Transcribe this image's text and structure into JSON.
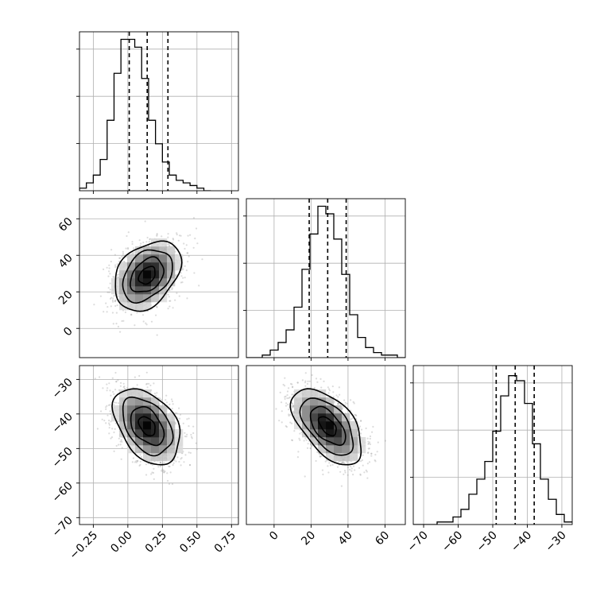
{
  "chart_data": [
    {
      "type": "histogram",
      "panel": "diag-0",
      "xlim": [
        -0.35,
        0.8
      ],
      "bins_lo": -0.35,
      "bin_width": 0.05,
      "counts": [
        1,
        3,
        6,
        12,
        27,
        45,
        58,
        58,
        55,
        43,
        27,
        18,
        11,
        6,
        4,
        3,
        2,
        1,
        0
      ],
      "ymax": 58,
      "quantiles": [
        0.01,
        0.14,
        0.29
      ],
      "xticks": [
        -0.25,
        0.0,
        0.25,
        0.5,
        0.75
      ],
      "xtick_labels": [
        "−0.25",
        "0.00",
        "0.25",
        "0.50",
        "0.75"
      ],
      "grid": true
    },
    {
      "type": "histogram",
      "panel": "diag-1",
      "xlim": [
        -15,
        71
      ],
      "bins_lo": -15,
      "bin_width": 4.3,
      "counts": [
        0,
        0,
        1,
        3,
        6,
        11,
        20,
        35,
        49,
        60,
        57,
        47,
        33,
        17,
        8,
        4,
        2,
        1,
        1,
        0
      ],
      "ymax": 60,
      "quantiles": [
        19,
        29,
        39
      ],
      "xticks": [
        0,
        20,
        40,
        60
      ],
      "xtick_labels": [
        "0",
        "20",
        "40",
        "60"
      ],
      "grid": true
    },
    {
      "type": "histogram",
      "panel": "diag-2",
      "xlim": [
        -73,
        -27
      ],
      "bins_lo": -73,
      "bin_width": 2.3,
      "counts": [
        0,
        0,
        0,
        1,
        1,
        3,
        6,
        12,
        18,
        25,
        37,
        51,
        59,
        57,
        48,
        32,
        18,
        10,
        4,
        1
      ],
      "ymax": 60,
      "quantiles": [
        -49,
        -43.5,
        -38
      ],
      "xticks": [
        -70,
        -60,
        -50,
        -40,
        -30
      ],
      "xtick_labels": [
        "−70",
        "−60",
        "−50",
        "−40",
        "−30"
      ],
      "grid": true
    },
    {
      "type": "scatter_density",
      "panel": "joint-1-0",
      "xlim": [
        -0.35,
        0.8
      ],
      "ylim": [
        -16,
        71
      ],
      "center": [
        0.14,
        29
      ],
      "sd": [
        0.12,
        9.5
      ],
      "rho": 0.35,
      "contour_levels_sigma": [
        0.5,
        1.0,
        1.5,
        2.0
      ],
      "yticks": [
        0,
        20,
        40,
        60
      ],
      "ytick_labels": [
        "0",
        "20",
        "40",
        "60"
      ],
      "grid": true
    },
    {
      "type": "scatter_density",
      "panel": "joint-2-0",
      "xlim": [
        -0.35,
        0.8
      ],
      "ylim": [
        -72,
        -26
      ],
      "center": [
        0.14,
        -43.5
      ],
      "sd": [
        0.12,
        5.5
      ],
      "rho": -0.4,
      "contour_levels_sigma": [
        0.5,
        1.0,
        1.5,
        2.0
      ],
      "xticks": [
        -0.25,
        0.0,
        0.25,
        0.5,
        0.75
      ],
      "xtick_labels": [
        "−0.25",
        "0.00",
        "0.25",
        "0.50",
        "0.75"
      ],
      "yticks": [
        -70,
        -60,
        -50,
        -40,
        -30
      ],
      "ytick_labels": [
        "−70",
        "−60",
        "−50",
        "−40",
        "−30"
      ],
      "grid": true
    },
    {
      "type": "scatter_density",
      "panel": "joint-2-1",
      "xlim": [
        -15,
        71
      ],
      "ylim": [
        -72,
        -26
      ],
      "center": [
        29,
        -43.5
      ],
      "sd": [
        9.5,
        5.5
      ],
      "rho": -0.55,
      "contour_levels_sigma": [
        0.5,
        1.0,
        1.5,
        2.0
      ],
      "xticks": [
        0,
        20,
        40,
        60
      ],
      "xtick_labels": [
        "0",
        "20",
        "40",
        "60"
      ],
      "grid": true
    }
  ]
}
